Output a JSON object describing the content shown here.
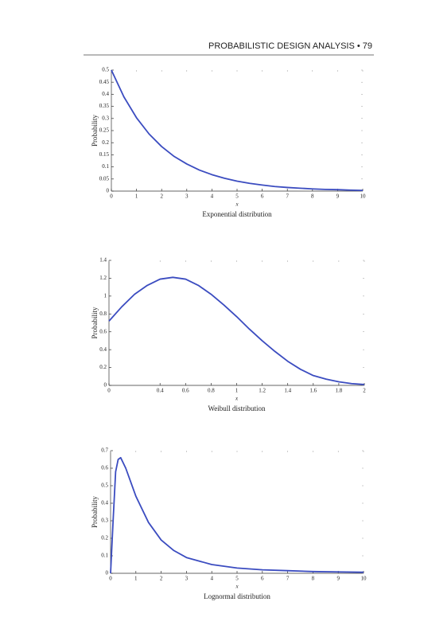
{
  "header": {
    "text": "PROBABILISTIC DESIGN ANALYSIS • 79"
  },
  "chart_data": [
    {
      "type": "line",
      "caption": "Exponential distribution",
      "x_label": "x",
      "y_label": "Probability",
      "x": [
        0,
        0.5,
        1,
        1.5,
        2,
        2.5,
        3,
        3.5,
        4,
        4.5,
        5,
        5.5,
        6,
        6.5,
        7,
        7.5,
        8,
        8.5,
        9,
        9.5,
        10
      ],
      "series": [
        {
          "name": "Exponential",
          "color": "#3b4cc0",
          "values": [
            0.5,
            0.389,
            0.303,
            0.236,
            0.184,
            0.143,
            0.112,
            0.087,
            0.068,
            0.053,
            0.041,
            0.032,
            0.025,
            0.019,
            0.015,
            0.012,
            0.009,
            0.007,
            0.006,
            0.004,
            0.003
          ]
        }
      ],
      "xlim": [
        0,
        10
      ],
      "xticks": [
        0,
        1,
        2,
        3,
        4,
        5,
        6,
        7,
        8,
        9,
        10
      ],
      "ylim": [
        0,
        0.5
      ],
      "yticks": [
        0,
        0.05,
        0.1,
        0.15,
        0.2,
        0.25,
        0.3,
        0.35,
        0.4,
        0.45,
        0.5
      ]
    },
    {
      "type": "line",
      "caption": "Weibull distribution",
      "x_label": "x",
      "y_label": "Probability",
      "x": [
        0,
        0.1,
        0.2,
        0.3,
        0.4,
        0.5,
        0.6,
        0.7,
        0.8,
        0.9,
        1,
        1.1,
        1.2,
        1.3,
        1.4,
        1.5,
        1.6,
        1.7,
        1.8,
        1.9,
        2
      ],
      "series": [
        {
          "name": "Weibull",
          "color": "#3b4cc0",
          "values": [
            0.72,
            0.88,
            1.02,
            1.12,
            1.19,
            1.21,
            1.19,
            1.12,
            1.02,
            0.9,
            0.77,
            0.63,
            0.5,
            0.38,
            0.27,
            0.18,
            0.11,
            0.07,
            0.04,
            0.02,
            0.01
          ]
        }
      ],
      "xlim": [
        0,
        2
      ],
      "xticks": [
        0,
        0.4,
        0.6,
        0.8,
        1,
        1.2,
        1.4,
        1.6,
        1.8,
        2
      ],
      "ylim": [
        0,
        1.4
      ],
      "yticks": [
        0,
        0.2,
        0.4,
        0.6,
        0.8,
        1,
        1.2,
        1.4
      ]
    },
    {
      "type": "line",
      "caption": "Lognormal distribution",
      "x_label": "x",
      "y_label": "Probability",
      "x": [
        0,
        0.1,
        0.2,
        0.3,
        0.4,
        0.6,
        0.8,
        1,
        1.5,
        2,
        2.5,
        3,
        4,
        5,
        6,
        7,
        8,
        9,
        10
      ],
      "series": [
        {
          "name": "Lognormal",
          "color": "#3b4cc0",
          "values": [
            0,
            0.3,
            0.58,
            0.65,
            0.66,
            0.6,
            0.52,
            0.44,
            0.29,
            0.19,
            0.13,
            0.09,
            0.05,
            0.03,
            0.02,
            0.015,
            0.01,
            0.008,
            0.006
          ]
        }
      ],
      "xlim": [
        0,
        10
      ],
      "xticks": [
        0,
        1,
        2,
        3,
        4,
        5,
        6,
        7,
        8,
        9,
        10
      ],
      "ylim": [
        0,
        0.7
      ],
      "yticks": [
        0,
        0.1,
        0.2,
        0.3,
        0.4,
        0.5,
        0.6,
        0.7
      ]
    }
  ]
}
